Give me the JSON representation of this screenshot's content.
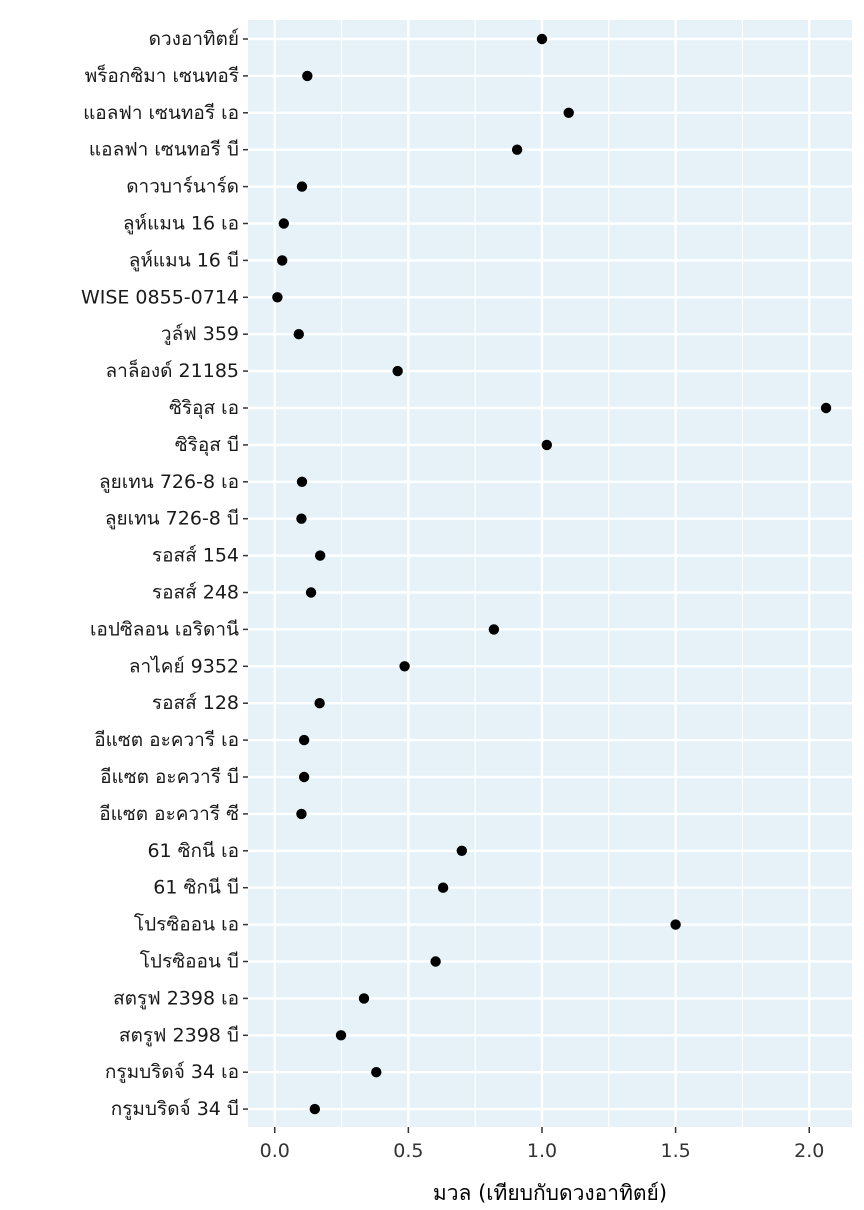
{
  "chart_data": {
    "type": "scatter",
    "orientation": "horizontal",
    "xlabel": "มวล (เทียบกับดวงอาทิตย์)",
    "ylabel": "",
    "title": "",
    "xlim": [
      -0.1,
      2.16
    ],
    "x_ticks": [
      0.0,
      0.5,
      1.0,
      1.5,
      2.0
    ],
    "x_tick_labels": [
      "0.0",
      "0.5",
      "1.0",
      "1.5",
      "2.0"
    ],
    "grid": true,
    "legend": "none",
    "panel_color": "#e6f2f7",
    "point_color": "#000000",
    "categories": [
      "ดวงอาทิตย์",
      "พร็อกซิมา เซนทอรี",
      "แอลฟา เซนทอรี เอ",
      "แอลฟา เซนทอรี บี",
      "ดาวบาร์นาร์ด",
      "ลูห์แมน 16 เอ",
      "ลูห์แมน 16 บี",
      "WISE 0855-0714",
      "วูล์ฟ 359",
      "ลาล็องด์ 21185",
      "ซิริอุส เอ",
      "ซิริอุส บี",
      "ลูยเทน 726-8 เอ",
      "ลูยเทน 726-8 บี",
      "รอสส์ 154",
      "รอสส์ 248",
      "เอปซิลอน เอริดานี",
      "ลาไคย์ 9352",
      "รอสส์ 128",
      "อีแซต อะควารี เอ",
      "อีแซต อะควารี บี",
      "อีแซต อะควารี ซี",
      "61 ซิกนี เอ",
      "61 ซิกนี บี",
      "โปรซิออน เอ",
      "โปรซิออน บี",
      "สตรูฟ 2398 เอ",
      "สตรูฟ 2398 บี",
      "กรูมบริดจ์ 34 เอ",
      "กรูมบริดจ์ 34 บี"
    ],
    "values": [
      1.0,
      0.122,
      1.1,
      0.907,
      0.102,
      0.034,
      0.028,
      0.01,
      0.09,
      0.46,
      2.063,
      1.018,
      0.102,
      0.1,
      0.17,
      0.136,
      0.82,
      0.486,
      0.168,
      0.11,
      0.11,
      0.1,
      0.7,
      0.63,
      1.5,
      0.602,
      0.334,
      0.248,
      0.38,
      0.15
    ]
  }
}
